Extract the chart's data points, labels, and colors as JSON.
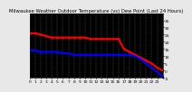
{
  "title": "Milwaukee Weather Outdoor Temperature (vs) Dew Point (Last 24 Hours)",
  "bg_color": "#e8e8e8",
  "plot_bg": "#000000",
  "grid_color": "#888888",
  "temp_color": "#ff0000",
  "dew_color": "#0000ff",
  "ylim": [
    -5,
    40
  ],
  "xlim": [
    0,
    24
  ],
  "x_hours": [
    0,
    1,
    2,
    3,
    4,
    5,
    6,
    7,
    8,
    9,
    10,
    11,
    12,
    13,
    14,
    15,
    16,
    17,
    18,
    19,
    20,
    21,
    22,
    23,
    24
  ],
  "temp_values": [
    26,
    26,
    25,
    24,
    23,
    23,
    23,
    23,
    23,
    23,
    23,
    22,
    22,
    22,
    22,
    22,
    22,
    15,
    13,
    11,
    9,
    7,
    5,
    2,
    0
  ],
  "dew_values": [
    14,
    14,
    13,
    13,
    13,
    13,
    12,
    12,
    11,
    11,
    11,
    11,
    11,
    11,
    11,
    11,
    11,
    11,
    11,
    10,
    8,
    5,
    2,
    -1,
    -4
  ],
  "title_fontsize": 3.8,
  "tick_fontsize": 3.2,
  "line_width": 1.5,
  "marker_size": 1.5,
  "ytick_values": [
    35,
    30,
    25,
    20,
    15,
    10,
    5,
    0,
    -5
  ]
}
